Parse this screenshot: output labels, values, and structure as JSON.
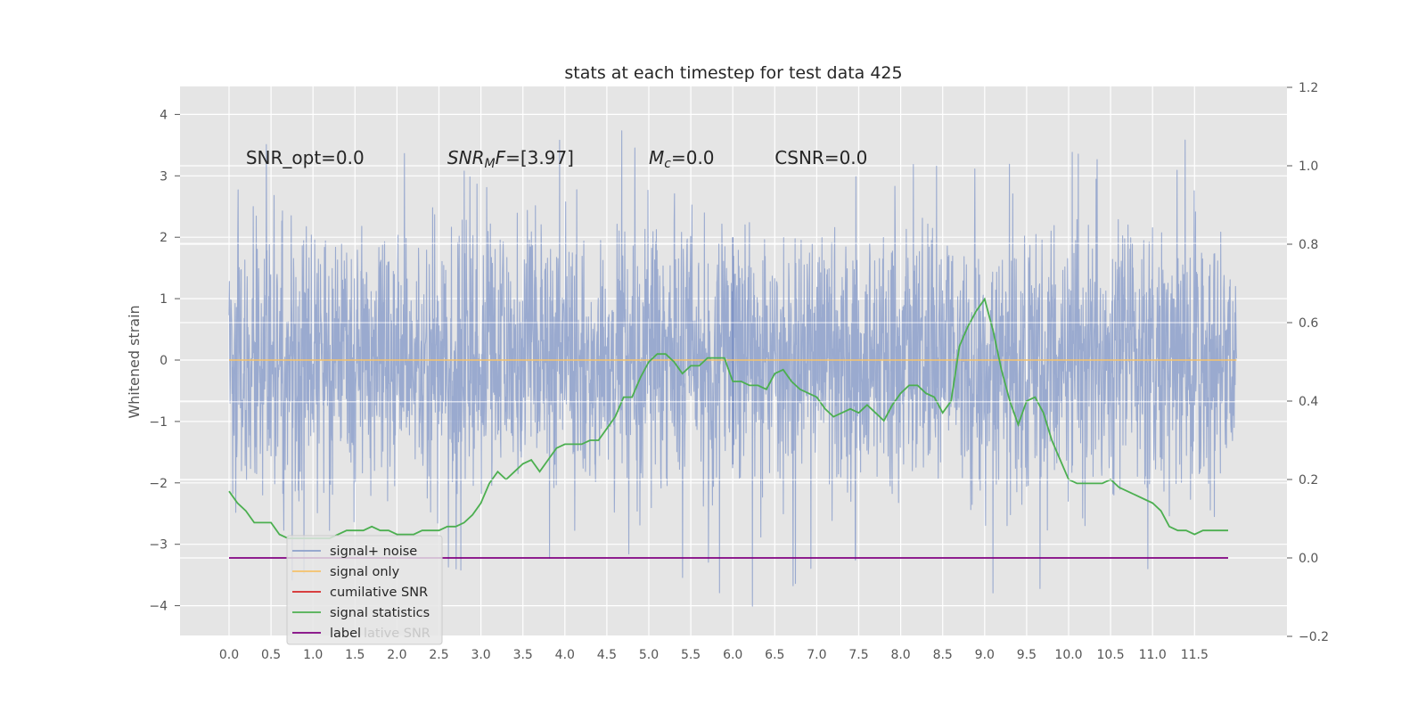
{
  "chart_data": {
    "type": "line",
    "title": "stats at each timestep for test data 425",
    "ylabel": "Whitened strain",
    "xlabel": "",
    "xlim": [
      -0.6,
      12.6
    ],
    "ylim": [
      -4.5,
      4.4
    ],
    "y2lim": [
      -0.2,
      1.2
    ],
    "grid": true,
    "xticks": [
      "0.0",
      "0.5",
      "1.0",
      "1.5",
      "2.0",
      "2.5",
      "3.0",
      "3.5",
      "4.0",
      "4.5",
      "5.0",
      "5.5",
      "6.0",
      "6.5",
      "7.0",
      "7.5",
      "8.0",
      "8.5",
      "9.0",
      "9.5",
      "10.0",
      "10.5",
      "11.0",
      "11.5"
    ],
    "yticks": [
      "4",
      "3",
      "2",
      "1",
      "0",
      "−1",
      "−2",
      "−3",
      "−4"
    ],
    "y2ticks": [
      "1.2",
      "1.0",
      "0.8",
      "0.6",
      "0.4",
      "0.2",
      "0.0",
      "−0.2"
    ],
    "annotations": [
      {
        "text": "SNR_opt=0.0",
        "x": 0.2
      },
      {
        "text": "SNR_MF=[3.97]",
        "main": "SNR",
        "sub": "M",
        "rest": "F=[3.97]",
        "x": 2.6
      },
      {
        "text": "M_c=0.0",
        "main": "M",
        "sub": "c",
        "rest": "=0.0",
        "x": 5.0
      },
      {
        "text": "CSNR=0.0",
        "x": 6.5
      }
    ],
    "legend": {
      "placement": "lower-left",
      "entries": [
        {
          "label": "signal+ noise",
          "color": "#8da0cb"
        },
        {
          "label": "signal only",
          "color": "#f5c26b"
        },
        {
          "label": "cumilative SNR",
          "color": "#d62728"
        },
        {
          "label": "signal statistics",
          "color": "#4caf50"
        },
        {
          "label": "label",
          "color": "#800080"
        }
      ],
      "occluded_text": "lative SNR"
    },
    "series": [
      {
        "name": "signal+ noise",
        "axis": "left",
        "style": "noise-fill",
        "color": "#8da0cb",
        "x_range": [
          0.0,
          12.0
        ],
        "n_samples": 3000,
        "upper_envelope": [
          [
            0.0,
            1.2
          ],
          [
            0.1,
            3.3
          ],
          [
            0.3,
            4.0
          ],
          [
            0.8,
            2.3
          ],
          [
            1.6,
            3.2
          ],
          [
            2.5,
            3.5
          ],
          [
            3.0,
            2.8
          ],
          [
            4.5,
            4.05
          ],
          [
            5.2,
            2.8
          ],
          [
            6.0,
            2.1
          ],
          [
            7.0,
            2.8
          ],
          [
            8.0,
            3.2
          ],
          [
            9.0,
            3.1
          ],
          [
            10.0,
            3.4
          ],
          [
            11.0,
            3.0
          ],
          [
            11.5,
            3.75
          ],
          [
            12.0,
            1.8
          ]
        ],
        "lower_envelope": [
          [
            0.0,
            -1.8
          ],
          [
            0.2,
            -3.5
          ],
          [
            0.6,
            -3.7
          ],
          [
            1.5,
            -3.0
          ],
          [
            3.0,
            -3.5
          ],
          [
            4.5,
            -3.0
          ],
          [
            5.5,
            -3.6
          ],
          [
            6.4,
            -4.1
          ],
          [
            7.0,
            -3.3
          ],
          [
            8.0,
            -3.2
          ],
          [
            9.3,
            -3.9
          ],
          [
            10.5,
            -3.3
          ],
          [
            11.4,
            -3.5
          ],
          [
            12.0,
            -1.8
          ]
        ]
      },
      {
        "name": "signal only",
        "axis": "left",
        "color": "#f5c26b",
        "x": [
          0.0,
          12.0
        ],
        "y": [
          0.0,
          0.0
        ]
      },
      {
        "name": "signal statistics",
        "axis": "right",
        "color": "#4caf50",
        "x": [
          0.0,
          0.1,
          0.2,
          0.3,
          0.4,
          0.5,
          0.6,
          0.7,
          0.8,
          0.9,
          1.0,
          1.1,
          1.2,
          1.3,
          1.4,
          1.5,
          1.6,
          1.7,
          1.8,
          1.9,
          2.0,
          2.1,
          2.2,
          2.3,
          2.4,
          2.5,
          2.6,
          2.7,
          2.8,
          2.9,
          3.0,
          3.1,
          3.2,
          3.3,
          3.4,
          3.5,
          3.6,
          3.7,
          3.8,
          3.9,
          4.0,
          4.1,
          4.2,
          4.3,
          4.4,
          4.5,
          4.6,
          4.7,
          4.8,
          4.9,
          5.0,
          5.1,
          5.2,
          5.3,
          5.4,
          5.5,
          5.6,
          5.7,
          5.8,
          5.9,
          6.0,
          6.1,
          6.2,
          6.3,
          6.4,
          6.5,
          6.6,
          6.7,
          6.8,
          6.9,
          7.0,
          7.1,
          7.2,
          7.3,
          7.4,
          7.5,
          7.6,
          7.7,
          7.8,
          7.9,
          8.0,
          8.1,
          8.2,
          8.3,
          8.4,
          8.5,
          8.6,
          8.7,
          8.8,
          8.9,
          9.0,
          9.1,
          9.2,
          9.3,
          9.4,
          9.5,
          9.6,
          9.7,
          9.8,
          9.9,
          10.0,
          10.1,
          10.2,
          10.3,
          10.4,
          10.5,
          10.6,
          10.7,
          10.8,
          10.9,
          11.0,
          11.1,
          11.2,
          11.3,
          11.4,
          11.5,
          11.6,
          11.7,
          11.8,
          11.9
        ],
        "y": [
          0.17,
          0.14,
          0.12,
          0.09,
          0.09,
          0.09,
          0.06,
          0.05,
          0.05,
          0.05,
          0.05,
          0.05,
          0.05,
          0.06,
          0.07,
          0.07,
          0.07,
          0.08,
          0.07,
          0.07,
          0.06,
          0.06,
          0.06,
          0.07,
          0.07,
          0.07,
          0.08,
          0.08,
          0.09,
          0.11,
          0.14,
          0.19,
          0.22,
          0.2,
          0.22,
          0.24,
          0.25,
          0.22,
          0.25,
          0.28,
          0.29,
          0.29,
          0.29,
          0.3,
          0.3,
          0.33,
          0.36,
          0.41,
          0.41,
          0.46,
          0.5,
          0.52,
          0.52,
          0.5,
          0.47,
          0.49,
          0.49,
          0.51,
          0.51,
          0.51,
          0.45,
          0.45,
          0.44,
          0.44,
          0.43,
          0.47,
          0.48,
          0.45,
          0.43,
          0.42,
          0.41,
          0.38,
          0.36,
          0.37,
          0.38,
          0.37,
          0.39,
          0.37,
          0.35,
          0.39,
          0.42,
          0.44,
          0.44,
          0.42,
          0.41,
          0.37,
          0.4,
          0.54,
          0.59,
          0.63,
          0.66,
          0.58,
          0.48,
          0.4,
          0.34,
          0.4,
          0.41,
          0.37,
          0.3,
          0.25,
          0.2,
          0.19,
          0.19,
          0.19,
          0.19,
          0.2,
          0.18,
          0.17,
          0.16,
          0.15,
          0.14,
          0.12,
          0.08,
          0.07,
          0.07,
          0.06,
          0.07,
          0.07,
          0.07,
          0.07
        ]
      },
      {
        "name": "label",
        "axis": "right",
        "color": "#800080",
        "x": [
          0.0,
          11.9
        ],
        "y": [
          0.0,
          0.0
        ]
      }
    ]
  }
}
